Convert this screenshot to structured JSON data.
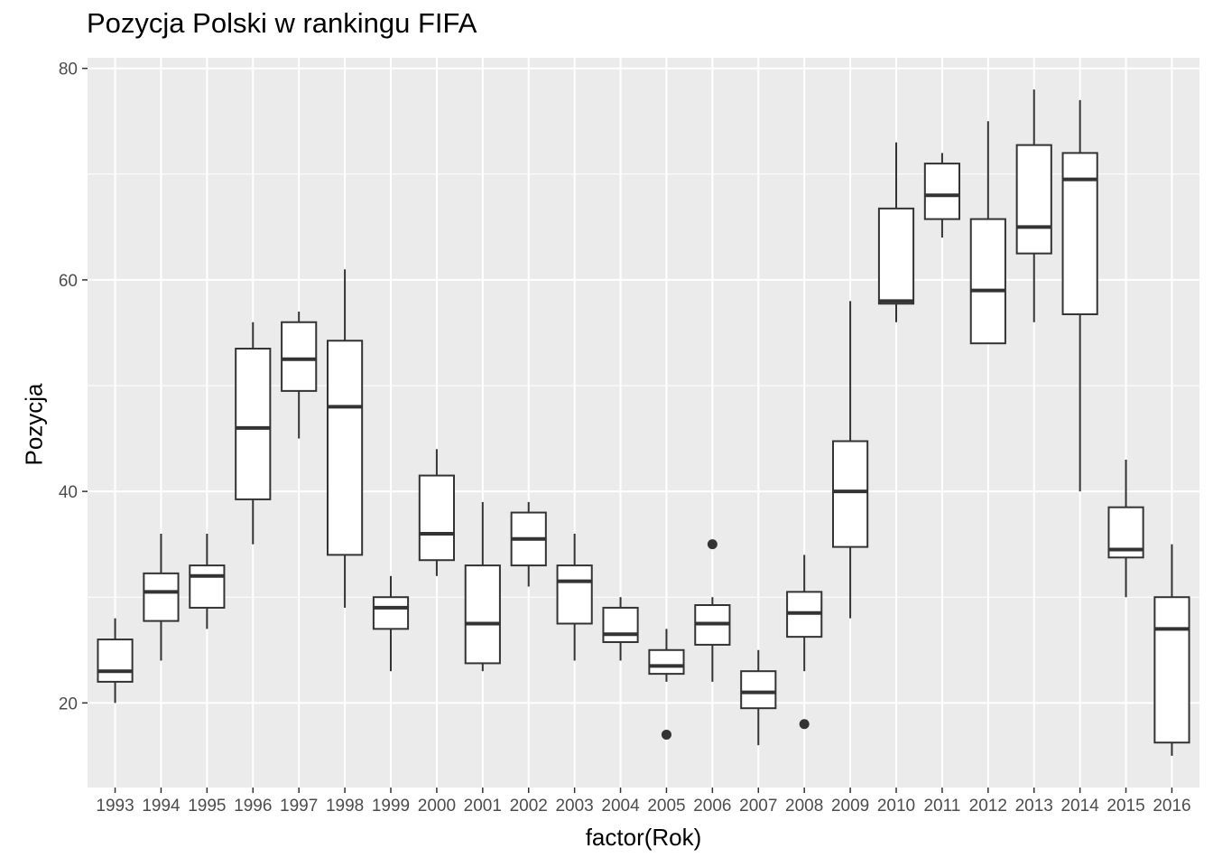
{
  "chart_data": {
    "type": "boxplot",
    "title": "Pozycja Polski w rankingu FIFA",
    "xlabel": "factor(Rok)",
    "ylabel": "Pozycja",
    "ylim": [
      12,
      81
    ],
    "yticks": [
      20,
      40,
      60,
      80
    ],
    "grid": true,
    "categories": [
      "1993",
      "1994",
      "1995",
      "1996",
      "1997",
      "1998",
      "1999",
      "2000",
      "2001",
      "2002",
      "2003",
      "2004",
      "2005",
      "2006",
      "2007",
      "2008",
      "2009",
      "2010",
      "2011",
      "2012",
      "2013",
      "2014",
      "2015",
      "2016"
    ],
    "boxes": [
      {
        "x": "1993",
        "min": 20,
        "q1": 22,
        "median": 23,
        "q3": 26,
        "max": 28,
        "outliers": []
      },
      {
        "x": "1994",
        "min": 24,
        "q1": 27.75,
        "median": 30.5,
        "q3": 32.25,
        "max": 36,
        "outliers": []
      },
      {
        "x": "1995",
        "min": 27,
        "q1": 29,
        "median": 32,
        "q3": 33,
        "max": 36,
        "outliers": []
      },
      {
        "x": "1996",
        "min": 35,
        "q1": 39.25,
        "median": 46,
        "q3": 53.5,
        "max": 56,
        "outliers": []
      },
      {
        "x": "1997",
        "min": 45,
        "q1": 49.5,
        "median": 52.5,
        "q3": 56,
        "max": 57,
        "outliers": []
      },
      {
        "x": "1998",
        "min": 29,
        "q1": 34,
        "median": 48,
        "q3": 54.25,
        "max": 61,
        "outliers": []
      },
      {
        "x": "1999",
        "min": 23,
        "q1": 27,
        "median": 29,
        "q3": 30,
        "max": 32,
        "outliers": []
      },
      {
        "x": "2000",
        "min": 32,
        "q1": 33.5,
        "median": 36,
        "q3": 41.5,
        "max": 44,
        "outliers": []
      },
      {
        "x": "2001",
        "min": 23,
        "q1": 23.75,
        "median": 27.5,
        "q3": 33,
        "max": 39,
        "outliers": []
      },
      {
        "x": "2002",
        "min": 31,
        "q1": 33,
        "median": 35.5,
        "q3": 38,
        "max": 39,
        "outliers": []
      },
      {
        "x": "2003",
        "min": 24,
        "q1": 27.5,
        "median": 31.5,
        "q3": 33,
        "max": 36,
        "outliers": []
      },
      {
        "x": "2004",
        "min": 24,
        "q1": 25.75,
        "median": 26.5,
        "q3": 29,
        "max": 30,
        "outliers": []
      },
      {
        "x": "2005",
        "min": 22,
        "q1": 22.75,
        "median": 23.5,
        "q3": 25,
        "max": 27,
        "outliers": [
          17
        ]
      },
      {
        "x": "2006",
        "min": 22,
        "q1": 25.5,
        "median": 27.5,
        "q3": 29.25,
        "max": 30,
        "outliers": [
          35
        ]
      },
      {
        "x": "2007",
        "min": 16,
        "q1": 19.5,
        "median": 21,
        "q3": 23,
        "max": 25,
        "outliers": []
      },
      {
        "x": "2008",
        "min": 23,
        "q1": 26.25,
        "median": 28.5,
        "q3": 30.5,
        "max": 34,
        "outliers": [
          18
        ]
      },
      {
        "x": "2009",
        "min": 28,
        "q1": 34.75,
        "median": 40,
        "q3": 44.75,
        "max": 58,
        "outliers": []
      },
      {
        "x": "2010",
        "min": 56,
        "q1": 57.75,
        "median": 58,
        "q3": 66.75,
        "max": 73,
        "outliers": []
      },
      {
        "x": "2011",
        "min": 64,
        "q1": 65.75,
        "median": 68,
        "q3": 71,
        "max": 72,
        "outliers": []
      },
      {
        "x": "2012",
        "min": 54,
        "q1": 54,
        "median": 59,
        "q3": 65.75,
        "max": 75,
        "outliers": []
      },
      {
        "x": "2013",
        "min": 56,
        "q1": 62.5,
        "median": 65,
        "q3": 72.75,
        "max": 78,
        "outliers": []
      },
      {
        "x": "2014",
        "min": 40,
        "q1": 56.75,
        "median": 69.5,
        "q3": 72,
        "max": 77,
        "outliers": []
      },
      {
        "x": "2015",
        "min": 30,
        "q1": 33.75,
        "median": 34.5,
        "q3": 38.5,
        "max": 43,
        "outliers": []
      },
      {
        "x": "2016",
        "min": 15,
        "q1": 16.25,
        "median": 27,
        "q3": 30,
        "max": 35,
        "outliers": []
      }
    ]
  }
}
